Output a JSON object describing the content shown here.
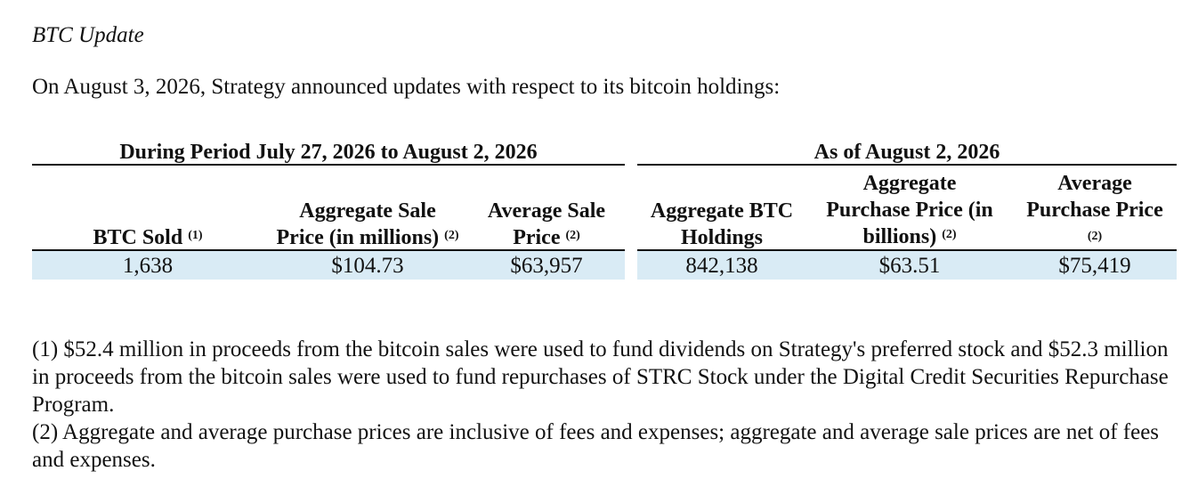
{
  "heading": "BTC Update",
  "intro": "On August 3, 2026, Strategy announced updates with respect to its bitcoin holdings:",
  "groups": {
    "period": "During Period July 27, 2026 to August 2, 2026",
    "as_of": "As of August 2, 2026"
  },
  "columns": [
    {
      "label": "BTC Sold",
      "note": "(1)"
    },
    {
      "line1": "Aggregate Sale",
      "line2": "Price (in millions)",
      "note": "(2)"
    },
    {
      "line1": "Average Sale",
      "line2": "Price",
      "note": "(2)"
    },
    {
      "line1": "Aggregate BTC",
      "line2": "Holdings"
    },
    {
      "line1": "Aggregate",
      "line2": "Purchase Price (in",
      "line3": "billions)",
      "note": "(2)"
    },
    {
      "line1": "Average",
      "line2": "Purchase Price",
      "note": "(2)"
    }
  ],
  "row": [
    "1,638",
    "$104.73",
    "$63,957",
    "842,138",
    "$63.51",
    "$75,419"
  ],
  "footnotes": [
    "(1) $52.4 million in proceeds from the bitcoin sales were used to fund dividends on Strategy's preferred stock and $52.3 million in proceeds from the bitcoin sales were used to fund repurchases of STRC Stock under the Digital Credit Securities Repurchase Program.",
    "(2) Aggregate and average purchase prices are inclusive of fees and expenses; aggregate and average sale prices are net of fees and expenses."
  ]
}
